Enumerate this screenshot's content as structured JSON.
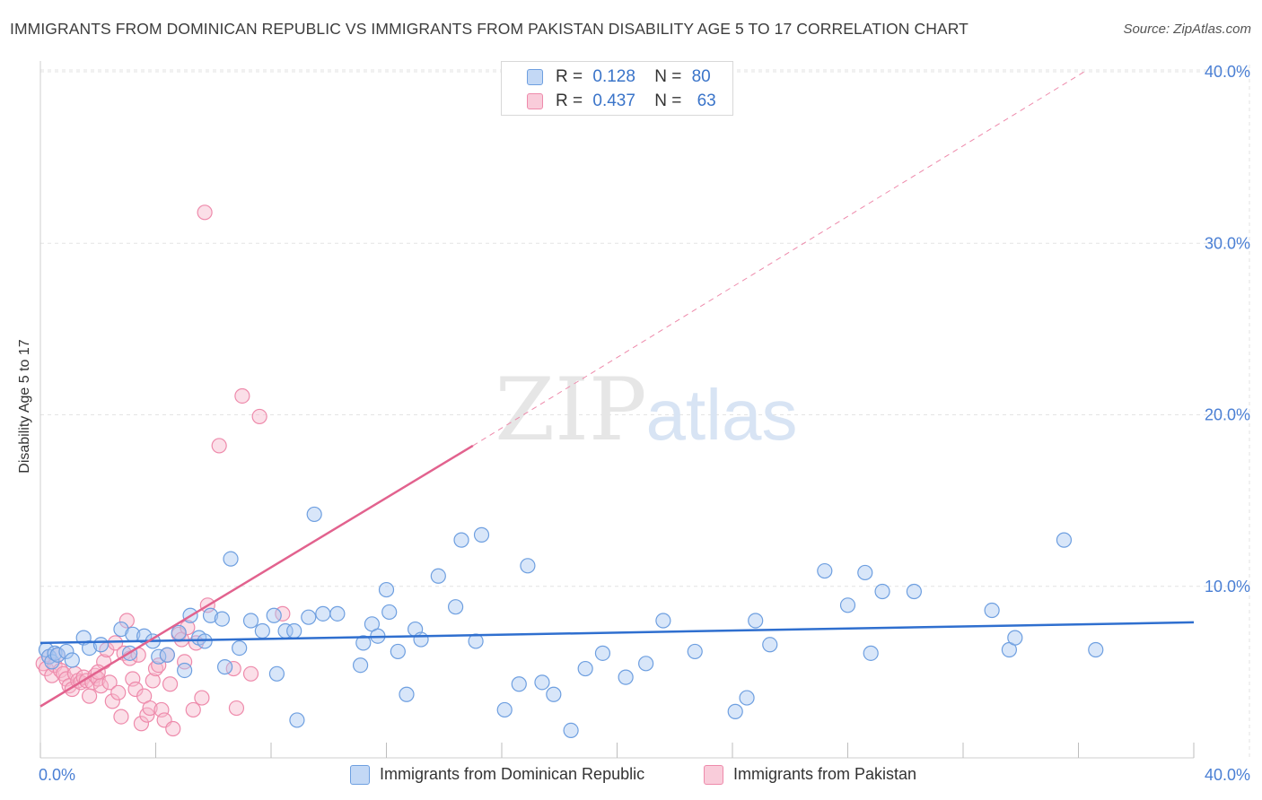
{
  "header": {
    "title": "IMMIGRANTS FROM DOMINICAN REPUBLIC VS IMMIGRANTS FROM PAKISTAN DISABILITY AGE 5 TO 17 CORRELATION CHART",
    "source": "Source: ZipAtlas.com"
  },
  "legend": {
    "r_label": "R =",
    "n_label": "N =",
    "series1": {
      "r": "0.128",
      "n": "80"
    },
    "series2": {
      "r": "0.437",
      "n": "63"
    }
  },
  "watermark": {
    "part1": "ZIP",
    "part2": "atlas"
  },
  "colors": {
    "blue_fill": "#a9c8f2",
    "blue_stroke": "#6e9fe0",
    "blue_line": "#2f6fcf",
    "pink_fill": "#f6b8cb",
    "pink_stroke": "#ee8aab",
    "pink_line": "#e2628e",
    "axis_text": "#4a7fd4",
    "grid": "#e3e3e3"
  },
  "chart_data": {
    "type": "scatter",
    "title": "IMMIGRANTS FROM DOMINICAN REPUBLIC VS IMMIGRANTS FROM PAKISTAN DISABILITY AGE 5 TO 17 CORRELATION CHART",
    "xlabel": "",
    "ylabel": "Disability Age 5 to 17",
    "xlim": [
      0,
      40
    ],
    "ylim": [
      0,
      40
    ],
    "x_tick_labels": [
      "0.0%",
      "40.0%"
    ],
    "y_ticks": [
      10,
      20,
      30,
      40
    ],
    "y_tick_labels": [
      "10.0%",
      "20.0%",
      "30.0%",
      "40.0%"
    ],
    "grid": true,
    "legend_position": "top-center",
    "series": [
      {
        "name": "Immigrants from Dominican Republic",
        "color": "blue",
        "r": 0.128,
        "n": 80,
        "trend": {
          "x0": 0,
          "y0": 6.7,
          "x1": 40,
          "y1": 7.9
        },
        "points": [
          [
            0.2,
            6.3
          ],
          [
            0.3,
            5.9
          ],
          [
            0.4,
            5.6
          ],
          [
            0.5,
            6.1
          ],
          [
            0.6,
            6.0
          ],
          [
            0.9,
            6.2
          ],
          [
            1.1,
            5.7
          ],
          [
            1.5,
            7.0
          ],
          [
            1.7,
            6.4
          ],
          [
            2.1,
            6.6
          ],
          [
            2.8,
            7.5
          ],
          [
            3.1,
            6.1
          ],
          [
            3.2,
            7.2
          ],
          [
            3.6,
            7.1
          ],
          [
            3.9,
            6.8
          ],
          [
            4.1,
            5.9
          ],
          [
            4.4,
            6.0
          ],
          [
            4.8,
            7.3
          ],
          [
            5.0,
            5.1
          ],
          [
            5.2,
            8.3
          ],
          [
            5.5,
            7.0
          ],
          [
            5.7,
            6.8
          ],
          [
            5.9,
            8.3
          ],
          [
            6.3,
            8.1
          ],
          [
            6.4,
            5.3
          ],
          [
            6.6,
            11.6
          ],
          [
            6.9,
            6.4
          ],
          [
            7.3,
            8.0
          ],
          [
            7.7,
            7.4
          ],
          [
            8.1,
            8.3
          ],
          [
            8.2,
            4.9
          ],
          [
            8.5,
            7.4
          ],
          [
            8.8,
            7.4
          ],
          [
            8.9,
            2.2
          ],
          [
            9.3,
            8.2
          ],
          [
            9.5,
            14.2
          ],
          [
            9.8,
            8.4
          ],
          [
            10.3,
            8.4
          ],
          [
            11.1,
            5.4
          ],
          [
            11.2,
            6.7
          ],
          [
            11.5,
            7.8
          ],
          [
            11.7,
            7.1
          ],
          [
            12.0,
            9.8
          ],
          [
            12.1,
            8.5
          ],
          [
            12.4,
            6.2
          ],
          [
            12.7,
            3.7
          ],
          [
            13.0,
            7.5
          ],
          [
            13.2,
            6.9
          ],
          [
            13.8,
            10.6
          ],
          [
            14.4,
            8.8
          ],
          [
            14.6,
            12.7
          ],
          [
            15.1,
            6.8
          ],
          [
            15.3,
            13.0
          ],
          [
            16.1,
            2.8
          ],
          [
            16.6,
            4.3
          ],
          [
            16.9,
            11.2
          ],
          [
            17.4,
            4.4
          ],
          [
            17.8,
            3.7
          ],
          [
            18.4,
            1.6
          ],
          [
            18.9,
            5.2
          ],
          [
            19.5,
            6.1
          ],
          [
            20.3,
            4.7
          ],
          [
            21.0,
            5.5
          ],
          [
            21.6,
            8.0
          ],
          [
            22.7,
            6.2
          ],
          [
            24.1,
            2.7
          ],
          [
            24.5,
            3.5
          ],
          [
            24.8,
            8.0
          ],
          [
            25.3,
            6.6
          ],
          [
            27.2,
            10.9
          ],
          [
            28.0,
            8.9
          ],
          [
            28.6,
            10.8
          ],
          [
            28.8,
            6.1
          ],
          [
            29.2,
            9.7
          ],
          [
            30.3,
            9.7
          ],
          [
            33.0,
            8.6
          ],
          [
            33.6,
            6.3
          ],
          [
            33.8,
            7.0
          ],
          [
            35.5,
            12.7
          ],
          [
            36.6,
            6.3
          ]
        ]
      },
      {
        "name": "Immigrants from Pakistan",
        "color": "pink",
        "r": 0.437,
        "n": 63,
        "trend": {
          "x0": 0,
          "y0": 3.0,
          "x1": 15.0,
          "y1": 18.2
        },
        "trend_extension": {
          "x0": 15.0,
          "y0": 18.2,
          "x1": 36.2,
          "y1": 40.0
        },
        "points": [
          [
            0.1,
            5.5
          ],
          [
            0.2,
            5.2
          ],
          [
            0.3,
            5.9
          ],
          [
            0.4,
            4.8
          ],
          [
            0.5,
            5.4
          ],
          [
            0.6,
            6.0
          ],
          [
            0.7,
            5.1
          ],
          [
            0.8,
            4.9
          ],
          [
            0.9,
            4.6
          ],
          [
            1.0,
            4.2
          ],
          [
            1.1,
            4.0
          ],
          [
            1.2,
            4.9
          ],
          [
            1.3,
            4.5
          ],
          [
            1.4,
            4.4
          ],
          [
            1.5,
            4.7
          ],
          [
            1.6,
            4.5
          ],
          [
            1.7,
            3.6
          ],
          [
            1.8,
            4.4
          ],
          [
            1.9,
            4.8
          ],
          [
            2.0,
            4.6
          ],
          [
            2.1,
            4.2
          ],
          [
            2.2,
            5.6
          ],
          [
            2.3,
            6.3
          ],
          [
            2.4,
            4.4
          ],
          [
            2.5,
            3.3
          ],
          [
            2.6,
            6.7
          ],
          [
            2.7,
            3.8
          ],
          [
            2.8,
            2.4
          ],
          [
            2.9,
            6.1
          ],
          [
            3.0,
            8.0
          ],
          [
            3.1,
            5.8
          ],
          [
            3.2,
            4.6
          ],
          [
            3.3,
            4.0
          ],
          [
            3.4,
            6.0
          ],
          [
            3.5,
            2.0
          ],
          [
            3.6,
            3.6
          ],
          [
            3.7,
            2.5
          ],
          [
            3.8,
            2.9
          ],
          [
            3.9,
            4.5
          ],
          [
            4.0,
            5.2
          ],
          [
            4.1,
            5.4
          ],
          [
            4.2,
            2.8
          ],
          [
            4.3,
            2.2
          ],
          [
            4.4,
            6.0
          ],
          [
            4.5,
            4.3
          ],
          [
            4.6,
            1.7
          ],
          [
            4.8,
            7.2
          ],
          [
            4.9,
            6.9
          ],
          [
            5.0,
            5.6
          ],
          [
            5.1,
            7.6
          ],
          [
            5.3,
            2.8
          ],
          [
            5.4,
            6.7
          ],
          [
            5.6,
            3.5
          ],
          [
            5.8,
            8.9
          ],
          [
            5.7,
            31.8
          ],
          [
            6.2,
            18.2
          ],
          [
            6.7,
            5.2
          ],
          [
            6.8,
            2.9
          ],
          [
            7.0,
            21.1
          ],
          [
            7.6,
            19.9
          ],
          [
            8.4,
            8.4
          ],
          [
            7.3,
            4.9
          ],
          [
            2.0,
            5.0
          ]
        ]
      }
    ]
  }
}
